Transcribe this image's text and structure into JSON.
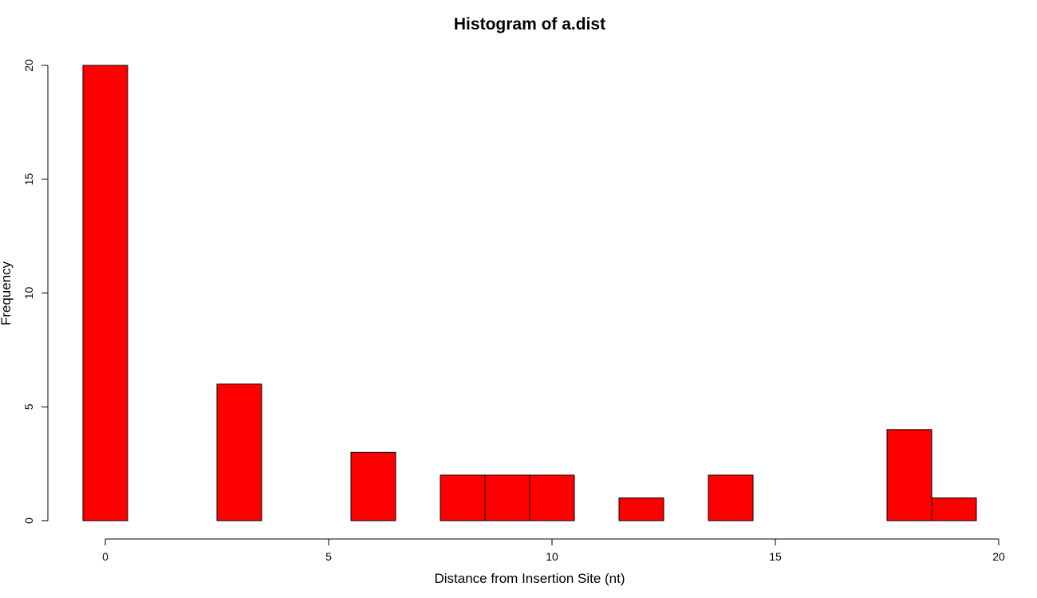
{
  "chart_data": {
    "type": "bar",
    "title": "Histogram of a.dist",
    "xlabel": "Distance from Insertion Site (nt)",
    "ylabel": "Frequency",
    "bar_color": "#ff0000",
    "border_color": "#000000",
    "bins": [
      {
        "x0": -0.5,
        "x1": 0.5,
        "count": 20
      },
      {
        "x0": 0.5,
        "x1": 1.5,
        "count": 0
      },
      {
        "x0": 1.5,
        "x1": 2.5,
        "count": 0
      },
      {
        "x0": 2.5,
        "x1": 3.5,
        "count": 6
      },
      {
        "x0": 3.5,
        "x1": 4.5,
        "count": 0
      },
      {
        "x0": 4.5,
        "x1": 5.5,
        "count": 0
      },
      {
        "x0": 5.5,
        "x1": 6.5,
        "count": 3
      },
      {
        "x0": 6.5,
        "x1": 7.5,
        "count": 0
      },
      {
        "x0": 7.5,
        "x1": 8.5,
        "count": 2
      },
      {
        "x0": 8.5,
        "x1": 9.5,
        "count": 2
      },
      {
        "x0": 9.5,
        "x1": 10.5,
        "count": 2
      },
      {
        "x0": 10.5,
        "x1": 11.5,
        "count": 0
      },
      {
        "x0": 11.5,
        "x1": 12.5,
        "count": 1
      },
      {
        "x0": 12.5,
        "x1": 13.5,
        "count": 0
      },
      {
        "x0": 13.5,
        "x1": 14.5,
        "count": 2
      },
      {
        "x0": 14.5,
        "x1": 15.5,
        "count": 0
      },
      {
        "x0": 15.5,
        "x1": 16.5,
        "count": 0
      },
      {
        "x0": 16.5,
        "x1": 17.5,
        "count": 0
      },
      {
        "x0": 17.5,
        "x1": 18.5,
        "count": 4
      },
      {
        "x0": 18.5,
        "x1": 19.5,
        "count": 1
      }
    ],
    "xlim": [
      0,
      20
    ],
    "ylim": [
      0,
      20
    ],
    "xticks": [
      0,
      5,
      10,
      15,
      20
    ],
    "yticks": [
      0,
      5,
      10,
      15,
      20
    ],
    "grid": false,
    "legend": "none"
  }
}
